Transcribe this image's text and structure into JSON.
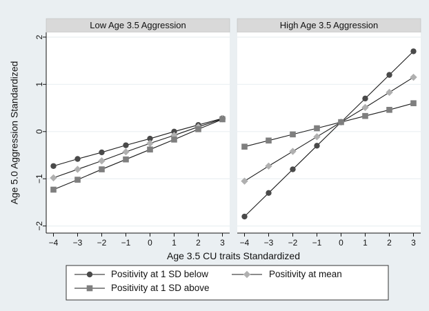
{
  "chart_data": {
    "type": "line",
    "ylabel": "Age 5.0 Aggression Standardized",
    "xlabel": "Age 3.5 CU traits Standardized",
    "x_ticks": [
      -4,
      -3,
      -2,
      -1,
      0,
      1,
      2,
      3
    ],
    "y_ticks": [
      -2,
      -1,
      0,
      1,
      2
    ],
    "xlim": [
      -4.3,
      3.3
    ],
    "ylim": [
      -2.15,
      2.1
    ],
    "grid": true,
    "legend_position": "bottom",
    "panels": [
      {
        "title": "Low Age 3.5 Aggression",
        "x": [
          -4,
          -3,
          -2,
          -1,
          0,
          1,
          2,
          3
        ],
        "series": [
          {
            "name": "Positivity at 1 SD below",
            "marker": "circle",
            "values": [
              -0.73,
              -0.58,
              -0.44,
              -0.29,
              -0.15,
              0.0,
              0.14,
              0.28
            ]
          },
          {
            "name": "Positivity at mean",
            "marker": "diamond",
            "values": [
              -0.98,
              -0.8,
              -0.62,
              -0.43,
              -0.25,
              -0.08,
              0.1,
              0.27
            ]
          },
          {
            "name": "Positivity at 1 SD above",
            "marker": "square",
            "values": [
              -1.23,
              -1.02,
              -0.8,
              -0.59,
              -0.38,
              -0.17,
              0.05,
              0.26
            ]
          }
        ]
      },
      {
        "title": "High Age 3.5 Aggression",
        "x": [
          -4,
          -3,
          -2,
          -1,
          0,
          1,
          2,
          3
        ],
        "series": [
          {
            "name": "Positivity at 1 SD below",
            "marker": "circle",
            "values": [
              -1.8,
              -1.3,
              -0.8,
              -0.3,
              0.2,
              0.7,
              1.2,
              1.7
            ]
          },
          {
            "name": "Positivity at mean",
            "marker": "diamond",
            "values": [
              -1.05,
              -0.73,
              -0.42,
              -0.11,
              0.2,
              0.51,
              0.83,
              1.15
            ]
          },
          {
            "name": "Positivity at 1 SD above",
            "marker": "square",
            "values": [
              -0.32,
              -0.19,
              -0.06,
              0.07,
              0.2,
              0.33,
              0.46,
              0.6
            ]
          }
        ]
      }
    ],
    "colors": {
      "circle": "#4a4a4a",
      "diamond": "#b0b0b0",
      "square": "#7f7f7f",
      "line": "#1a1a1a",
      "panel_bg": "#ffffff",
      "figure_bg": "#eaeff2",
      "grid": "#eaeff2",
      "title_strip": "#d9d9d9"
    }
  }
}
